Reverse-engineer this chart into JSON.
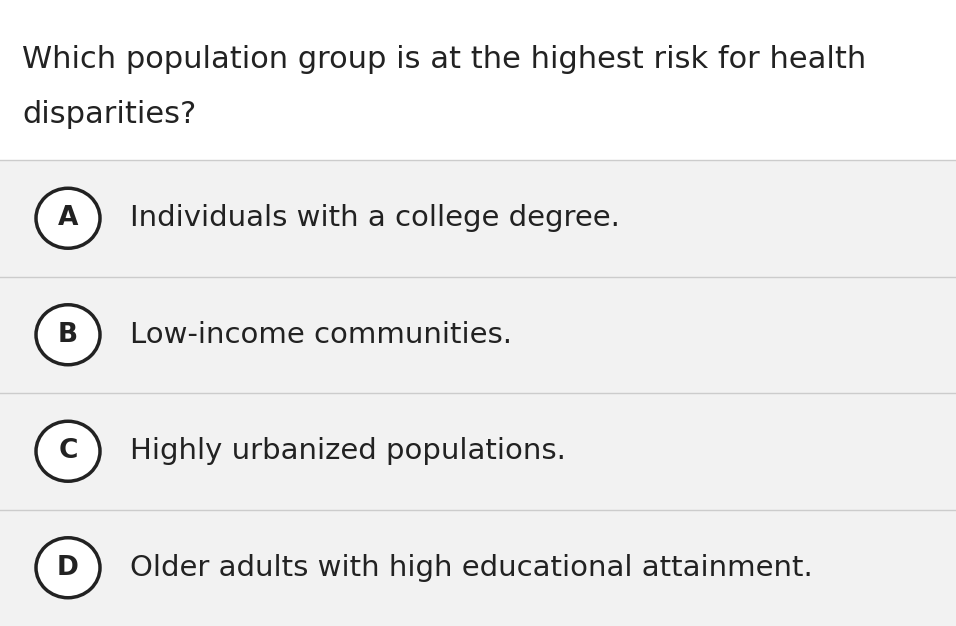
{
  "question_lines": [
    "Which population group is at the highest risk for health",
    "disparities?"
  ],
  "options": [
    {
      "letter": "A",
      "text": "Individuals with a college degree."
    },
    {
      "letter": "B",
      "text": "Low-income communities."
    },
    {
      "letter": "C",
      "text": "Highly urbanized populations."
    },
    {
      "letter": "D",
      "text": "Older adults with high educational attainment."
    }
  ],
  "bg_color": "#f2f2f2",
  "option_bg_color": "#f2f2f2",
  "question_bg_color": "#ffffff",
  "text_color": "#222222",
  "circle_edge_color": "#222222",
  "circle_face_color": "#ffffff",
  "divider_color": "#cccccc",
  "question_fontsize": 22,
  "option_fontsize": 21,
  "letter_fontsize": 19,
  "fig_width": 9.56,
  "fig_height": 6.26,
  "dpi": 100
}
